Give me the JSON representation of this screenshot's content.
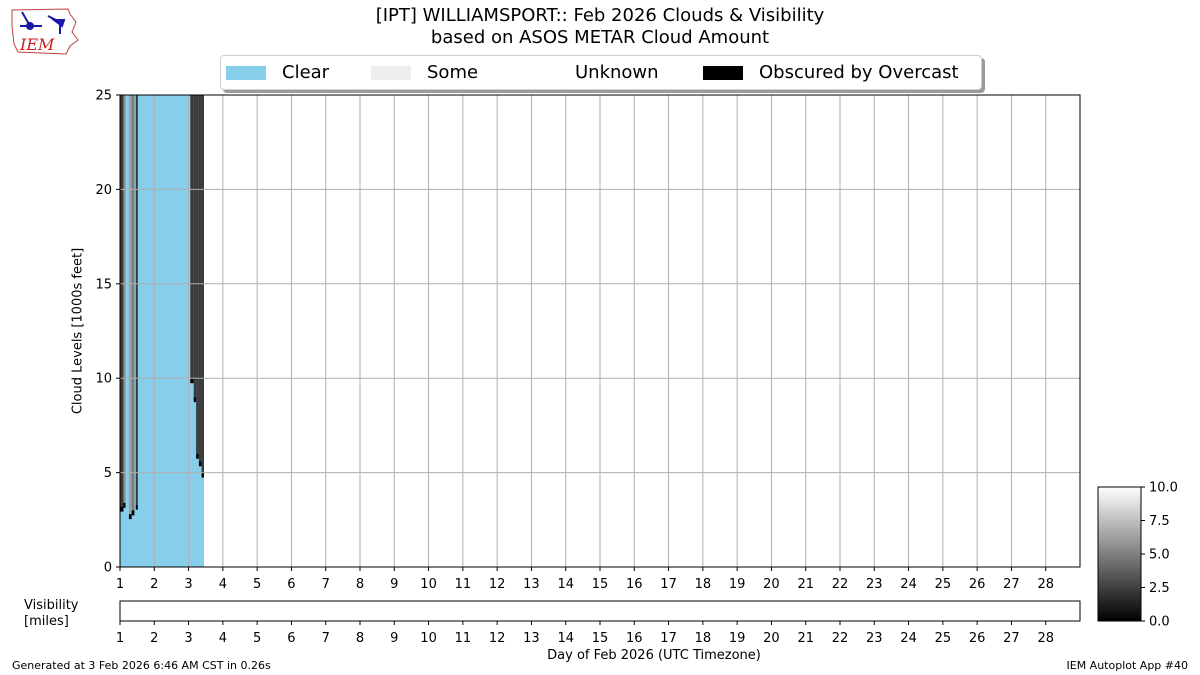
{
  "title": {
    "line1": "[IPT] WILLIAMSPORT:: Feb 2026 Clouds & Visibility",
    "line2": "based on ASOS METAR Cloud Amount"
  },
  "logo": {
    "text": "IEM",
    "icon": "iem-iowa-map-logo"
  },
  "legend": [
    {
      "label": "Clear",
      "color": "#87ceeb"
    },
    {
      "label": "Some",
      "color": "#eeeeee"
    },
    {
      "label": "Unknown",
      "color": "#ffffff"
    },
    {
      "label": "Obscured by Overcast",
      "color": "#000000"
    }
  ],
  "footer": {
    "left": "Generated at 3 Feb 2026 6:46 AM CST in 0.26s",
    "right": "IEM Autoplot App #40"
  },
  "chart_data": {
    "type": "area",
    "ylabel": "Cloud Levels [1000s feet]",
    "xlabel": "Day of Feb 2026 (UTC Timezone)",
    "visibility_label": [
      "Visibility",
      "[miles]"
    ],
    "xlim": [
      1,
      29
    ],
    "ylim": [
      0,
      25
    ],
    "x_ticks": [
      1,
      2,
      3,
      4,
      5,
      6,
      7,
      8,
      9,
      10,
      11,
      12,
      13,
      14,
      15,
      16,
      17,
      18,
      19,
      20,
      21,
      22,
      23,
      24,
      25,
      26,
      27,
      28
    ],
    "y_ticks": [
      0,
      5,
      10,
      15,
      20,
      25
    ],
    "grid": true,
    "legend_placement": "top-center",
    "data_end_day": 3.45,
    "clear_sky_region": {
      "x_start": 1.0,
      "x_end": 3.45,
      "y_top": 25
    },
    "cloud_layers": [
      {
        "x_start": 1.0,
        "x_end": 1.1,
        "base_kft": 3.2,
        "top_kft": 25,
        "shade": "#3a3a3a"
      },
      {
        "x_start": 1.1,
        "x_end": 1.16,
        "base_kft": 3.4,
        "top_kft": 25,
        "shade": "#8a8a8a"
      },
      {
        "x_start": 1.26,
        "x_end": 1.34,
        "base_kft": 2.8,
        "top_kft": 25,
        "shade": "#a0a0a0"
      },
      {
        "x_start": 1.34,
        "x_end": 1.42,
        "base_kft": 3.0,
        "top_kft": 25,
        "shade": "#7a7a7a"
      },
      {
        "x_start": 1.46,
        "x_end": 1.52,
        "base_kft": 3.3,
        "top_kft": 25,
        "shade": "#3a3a3a"
      },
      {
        "x_start": 3.05,
        "x_end": 3.15,
        "base_kft": 10.0,
        "top_kft": 25,
        "shade": "#3a3a3a"
      },
      {
        "x_start": 3.15,
        "x_end": 3.22,
        "base_kft": 9.0,
        "top_kft": 25,
        "shade": "#3a3a3a"
      },
      {
        "x_start": 3.22,
        "x_end": 3.3,
        "base_kft": 6.0,
        "top_kft": 25,
        "shade": "#3a3a3a"
      },
      {
        "x_start": 3.3,
        "x_end": 3.38,
        "base_kft": 5.6,
        "top_kft": 25,
        "shade": "#3a3a3a"
      },
      {
        "x_start": 3.38,
        "x_end": 3.45,
        "base_kft": 5.0,
        "top_kft": 25,
        "shade": "#3a3a3a"
      }
    ],
    "colorbar": {
      "min": 0.0,
      "max": 10.0,
      "ticks": [
        "0.0",
        "2.5",
        "5.0",
        "7.5",
        "10.0"
      ],
      "colormap": "gray"
    }
  }
}
